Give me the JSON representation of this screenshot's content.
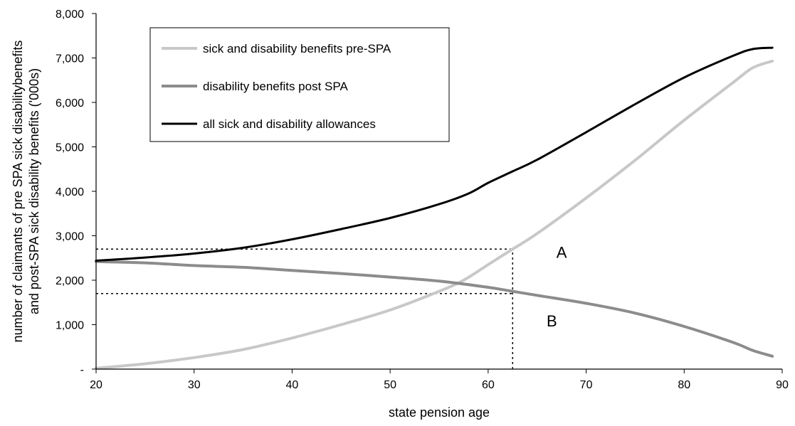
{
  "chart_data": {
    "type": "line",
    "title": "",
    "xlabel": "state pension age",
    "ylabel": [
      "number of claimants of pre SPA sick disabilitybenefits",
      "and post-SPA sick disability benefits ('000s)"
    ],
    "xlim": [
      20,
      90
    ],
    "ylim": [
      0,
      8000
    ],
    "x_ticks": [
      "20",
      "30",
      "40",
      "50",
      "60",
      "70",
      "80",
      "90"
    ],
    "y_ticks": [
      "-",
      "1,000",
      "2,000",
      "3,000",
      "4,000",
      "5,000",
      "6,000",
      "7,000",
      "8,000"
    ],
    "grid": false,
    "legend_position": "top-left",
    "series": [
      {
        "name": "sick and disability benefits pre-SPA",
        "color": "#c8c8c8",
        "x": [
          20,
          25,
          30,
          35,
          40,
          45,
          50,
          55,
          57.5,
          60,
          62.5,
          65,
          70,
          75,
          80,
          85,
          87,
          89
        ],
        "y": [
          20,
          120,
          260,
          440,
          700,
          1000,
          1330,
          1750,
          2000,
          2350,
          2700,
          3050,
          3850,
          4700,
          5600,
          6450,
          6780,
          6930
        ]
      },
      {
        "name": "disability benefits post SPA",
        "color": "#8c8c8c",
        "x": [
          20,
          25,
          30,
          35,
          40,
          45,
          50,
          55,
          60,
          62.5,
          65,
          70,
          75,
          80,
          85,
          87,
          89
        ],
        "y": [
          2420,
          2390,
          2330,
          2290,
          2220,
          2150,
          2070,
          1980,
          1840,
          1750,
          1660,
          1480,
          1260,
          960,
          600,
          420,
          290
        ]
      },
      {
        "name": "all sick and disability allowances",
        "color": "#000000",
        "x": [
          20,
          25,
          30,
          35,
          40,
          45,
          50,
          55,
          58,
          60,
          62.5,
          65,
          70,
          75,
          80,
          85,
          87,
          89
        ],
        "y": [
          2440,
          2510,
          2600,
          2730,
          2920,
          3150,
          3400,
          3710,
          3950,
          4190,
          4450,
          4710,
          5330,
          5960,
          6560,
          7050,
          7200,
          7230
        ]
      }
    ],
    "reference_lines": [
      {
        "axis": "y",
        "value": 2700,
        "x_from": 20,
        "x_to": 62.5,
        "style": "dotted"
      },
      {
        "axis": "y",
        "value": 1700,
        "x_from": 20,
        "x_to": 62.5,
        "style": "dotted"
      },
      {
        "axis": "x",
        "value": 62.5,
        "y_from": 0,
        "y_to": 2700,
        "style": "dotted"
      }
    ],
    "annotations": [
      {
        "text": "A",
        "x": 67.5,
        "y": 2700
      },
      {
        "text": "B",
        "x": 66.5,
        "y": 1150
      }
    ]
  }
}
